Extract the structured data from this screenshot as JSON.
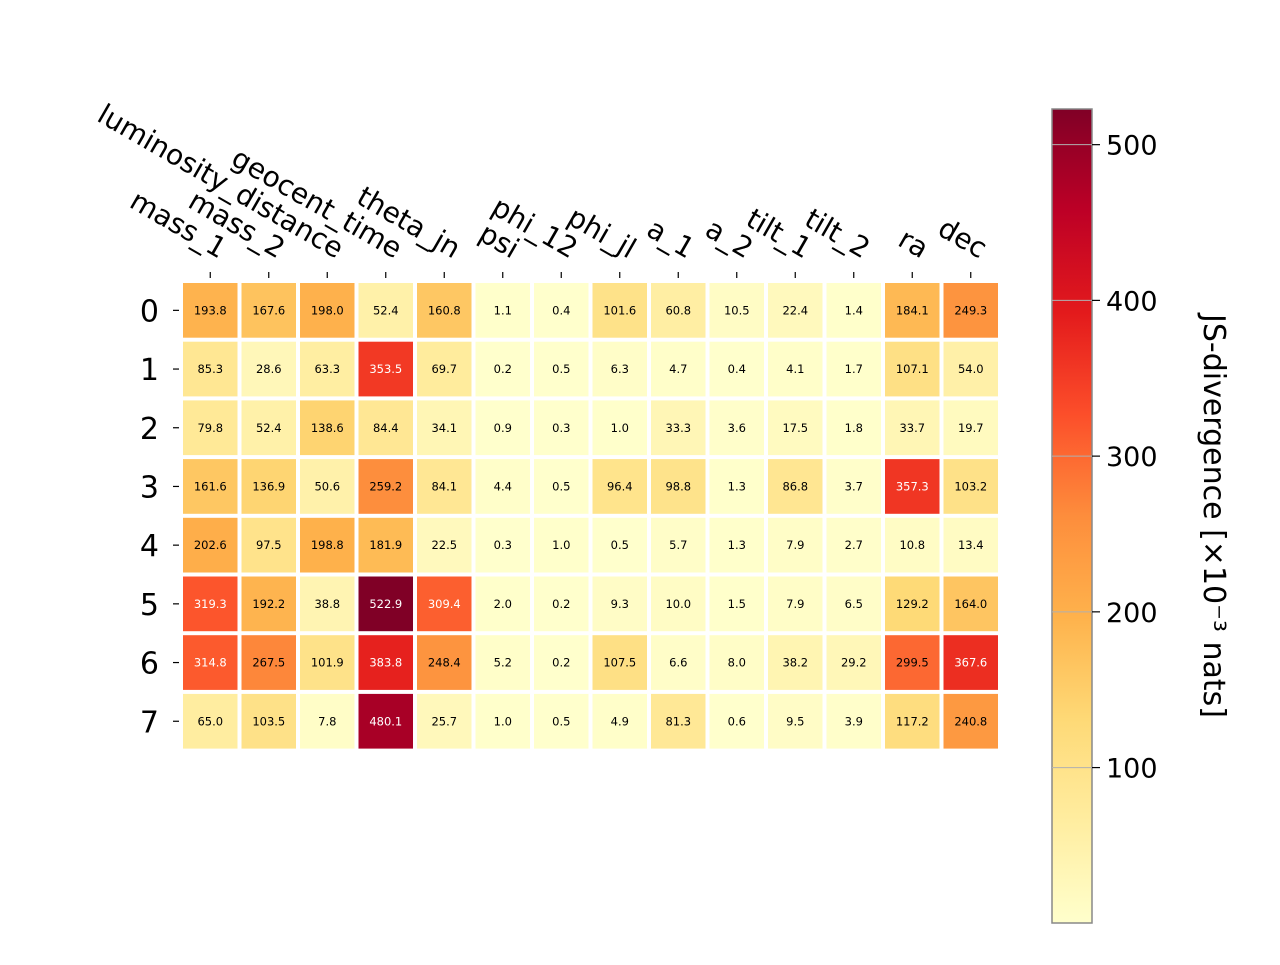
{
  "chart_data": {
    "type": "heatmap",
    "rows": [
      "0",
      "1",
      "2",
      "3",
      "4",
      "5",
      "6",
      "7"
    ],
    "columns": [
      "mass_1",
      "mass_2",
      "luminosity_distance",
      "geocent_time",
      "theta_jn",
      "psi",
      "phi_12",
      "phi_jl",
      "a_1",
      "a_2",
      "tilt_1",
      "tilt_2",
      "ra",
      "dec"
    ],
    "values": [
      [
        "193.8",
        "167.6",
        "198.0",
        "52.4",
        "160.8",
        "1.1",
        "0.4",
        "101.6",
        "60.8",
        "10.5",
        "22.4",
        "1.4",
        "184.1",
        "249.3"
      ],
      [
        "85.3",
        "28.6",
        "63.3",
        "353.5",
        "69.7",
        "0.2",
        "0.5",
        "6.3",
        "4.7",
        "0.4",
        "4.1",
        "1.7",
        "107.1",
        "54.0"
      ],
      [
        "79.8",
        "52.4",
        "138.6",
        "84.4",
        "34.1",
        "0.9",
        "0.3",
        "1.0",
        "33.3",
        "3.6",
        "17.5",
        "1.8",
        "33.7",
        "19.7"
      ],
      [
        "161.6",
        "136.9",
        "50.6",
        "259.2",
        "84.1",
        "4.4",
        "0.5",
        "96.4",
        "98.8",
        "1.3",
        "86.8",
        "3.7",
        "357.3",
        "103.2"
      ],
      [
        "202.6",
        "97.5",
        "198.8",
        "181.9",
        "22.5",
        "0.3",
        "1.0",
        "0.5",
        "5.7",
        "1.3",
        "7.9",
        "2.7",
        "10.8",
        "13.4"
      ],
      [
        "319.3",
        "192.2",
        "38.8",
        "522.9",
        "309.4",
        "2.0",
        "0.2",
        "9.3",
        "10.0",
        "1.5",
        "7.9",
        "6.5",
        "129.2",
        "164.0"
      ],
      [
        "314.8",
        "267.5",
        "101.9",
        "383.8",
        "248.4",
        "5.2",
        "0.2",
        "107.5",
        "6.6",
        "8.0",
        "38.2",
        "29.2",
        "299.5",
        "367.6"
      ],
      [
        "65.0",
        "103.5",
        "7.8",
        "480.1",
        "25.7",
        "1.0",
        "0.5",
        "4.9",
        "81.3",
        "0.6",
        "9.5",
        "3.9",
        "117.2",
        "240.8"
      ]
    ],
    "colormap": "YlOrRd",
    "colors": {
      "low": "#ffffcc",
      "high": "#800026",
      "dark_text": "#000000",
      "light_text": "#ffffff"
    },
    "vrange": [
      0.2,
      522.9
    ],
    "colorbar": {
      "ticks": [
        "100",
        "200",
        "300",
        "400",
        "500"
      ],
      "label": "JS-divergence [×10⁻³ nats]"
    }
  }
}
